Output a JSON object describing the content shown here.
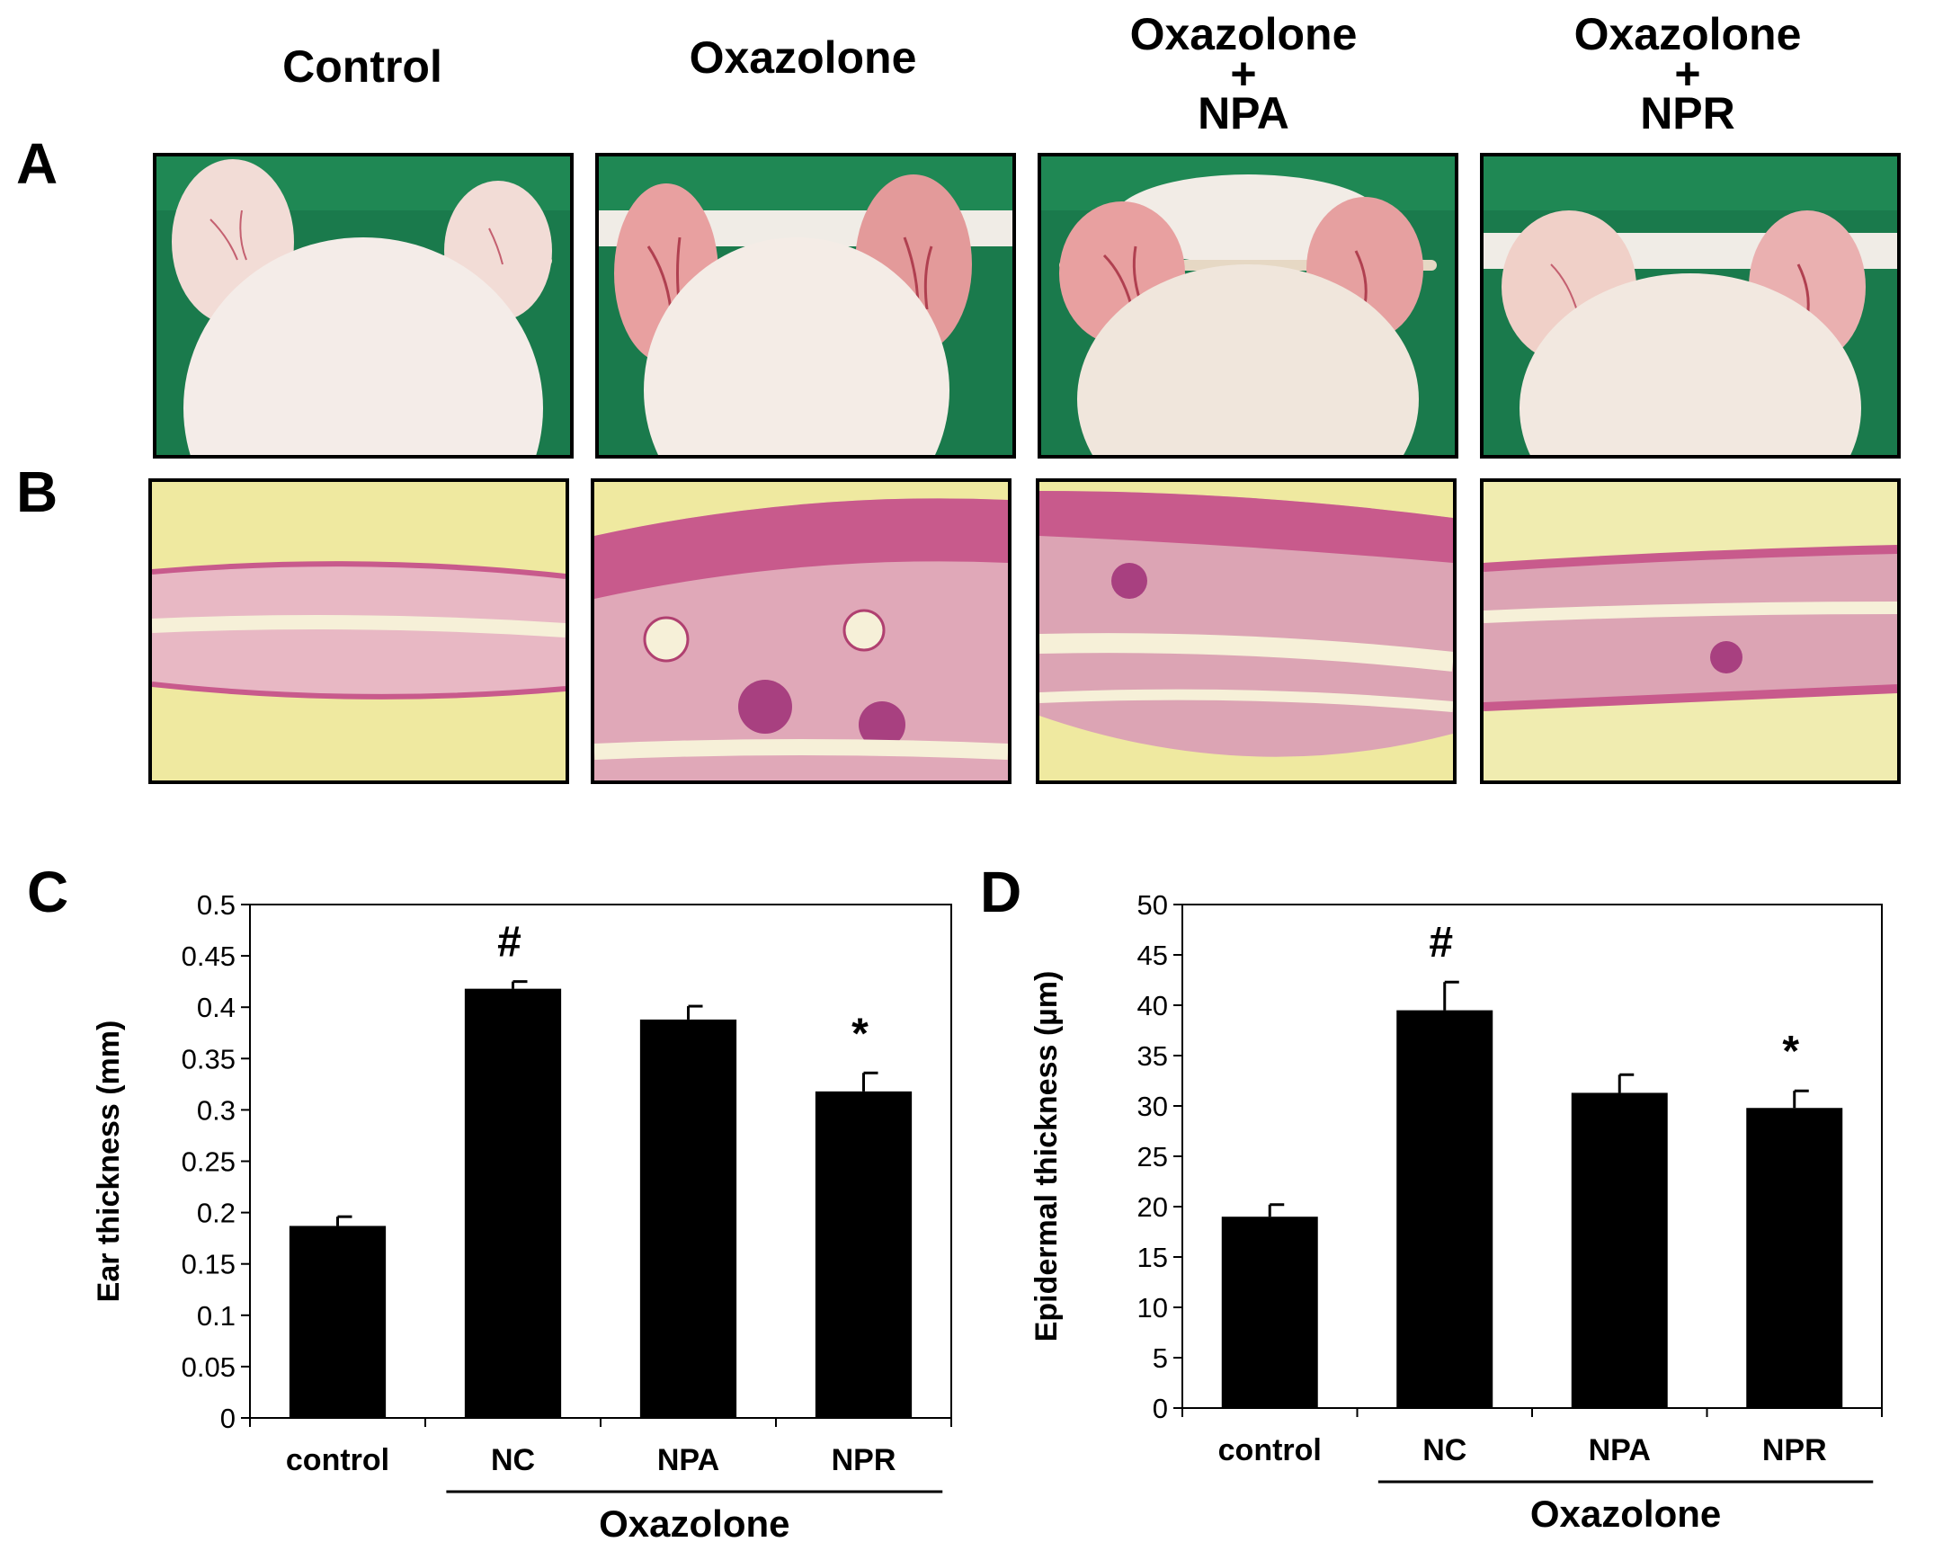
{
  "panel_labels": {
    "a": "A",
    "b": "B",
    "c": "C",
    "d": "D"
  },
  "column_headers": [
    {
      "lines": [
        "Control"
      ]
    },
    {
      "lines": [
        "Oxazolone"
      ]
    },
    {
      "lines": [
        "Oxazolone",
        "+",
        "NPA"
      ]
    },
    {
      "lines": [
        "Oxazolone",
        "+",
        "NPR"
      ]
    }
  ],
  "colors": {
    "bar": "#000000",
    "photo_background": "#1a7a4c",
    "histology_background": "#efe9a0",
    "tissue_pink": "#c85a8c",
    "tissue_light": "#e8b8c4"
  },
  "chart_data": [
    {
      "type": "bar",
      "title": "",
      "ylabel": "Ear thickness (mm)",
      "xlabel": "",
      "ylim": [
        0,
        0.5
      ],
      "yticks": [
        "0",
        "0.05",
        "0.1",
        "0.15",
        "0.2",
        "0.25",
        "0.3",
        "0.35",
        "0.4",
        "0.45",
        "0.5"
      ],
      "categories": [
        "control",
        "NC",
        "NPA",
        "NPR"
      ],
      "values": [
        0.187,
        0.418,
        0.388,
        0.318
      ],
      "errors": [
        0.009,
        0.007,
        0.013,
        0.018
      ],
      "annotations": [
        "",
        "#",
        "",
        "*"
      ],
      "group_label": "Oxazolone",
      "group_categories": [
        "NC",
        "NPA",
        "NPR"
      ],
      "grid": false
    },
    {
      "type": "bar",
      "title": "",
      "ylabel": "Epidermal thickness (µm)",
      "xlabel": "",
      "ylim": [
        0,
        50
      ],
      "yticks": [
        "0",
        "5",
        "10",
        "15",
        "20",
        "25",
        "30",
        "35",
        "40",
        "45",
        "50"
      ],
      "categories": [
        "control",
        "NC",
        "NPA",
        "NPR"
      ],
      "values": [
        19.0,
        39.5,
        31.3,
        29.8
      ],
      "errors": [
        1.2,
        2.8,
        1.8,
        1.7
      ],
      "annotations": [
        "",
        "#",
        "",
        "*"
      ],
      "group_label": "Oxazolone",
      "group_categories": [
        "NC",
        "NPA",
        "NPR"
      ],
      "grid": false
    }
  ]
}
